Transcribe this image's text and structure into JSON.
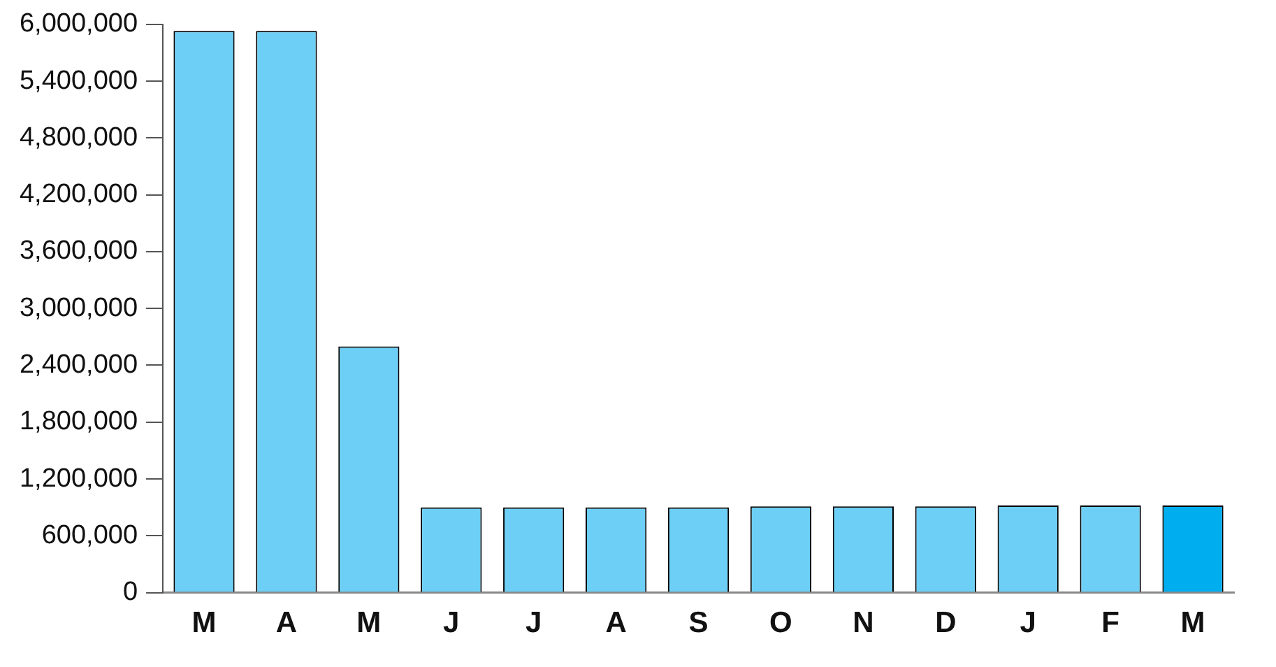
{
  "chart_data": {
    "type": "bar",
    "categories": [
      "M",
      "A",
      "M",
      "J",
      "J",
      "A",
      "S",
      "O",
      "N",
      "D",
      "J",
      "F",
      "M"
    ],
    "values": [
      5930000,
      5930000,
      2600000,
      900000,
      900000,
      900000,
      900000,
      910000,
      910000,
      910000,
      920000,
      920000,
      920000
    ],
    "colors": [
      "#6dcff6",
      "#6dcff6",
      "#6dcff6",
      "#6dcff6",
      "#6dcff6",
      "#6dcff6",
      "#6dcff6",
      "#6dcff6",
      "#6dcff6",
      "#6dcff6",
      "#6dcff6",
      "#6dcff6",
      "#00aeef"
    ],
    "ylim": [
      0,
      6000000
    ],
    "yticks": [
      {
        "value": 0,
        "label": "0"
      },
      {
        "value": 600000,
        "label": "600,000"
      },
      {
        "value": 1200000,
        "label": "1,200,000"
      },
      {
        "value": 1800000,
        "label": "1,800,000"
      },
      {
        "value": 2400000,
        "label": "2,400,000"
      },
      {
        "value": 3000000,
        "label": "3,000,000"
      },
      {
        "value": 3600000,
        "label": "3,600,000"
      },
      {
        "value": 4200000,
        "label": "4,200,000"
      },
      {
        "value": 4800000,
        "label": "4,800,000"
      },
      {
        "value": 5400000,
        "label": "5,400,000"
      },
      {
        "value": 6000000,
        "label": "6,000,000"
      }
    ],
    "grid": false,
    "legend": false
  }
}
